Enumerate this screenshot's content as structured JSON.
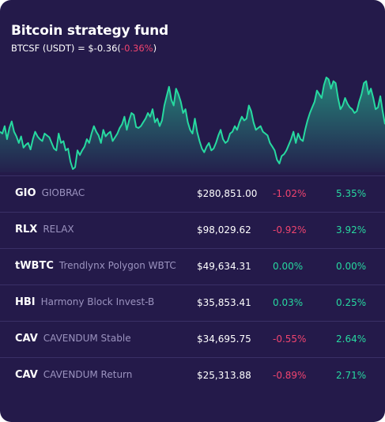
{
  "fund": {
    "title": "Bitcoin strategy fund",
    "pair_label": "BTCSF (USDT) = $-0.36(",
    "change": "-0.36%",
    "close_paren": ")"
  },
  "colors": {
    "background": "#241a4a",
    "line": "#27d9a0",
    "negative": "#f0446f",
    "positive": "#27d9a0",
    "muted": "#9b93bf"
  },
  "chart_data": {
    "type": "area",
    "values": [
      60,
      58,
      66,
      52,
      64,
      71,
      60,
      55,
      48,
      55,
      43,
      46,
      48,
      41,
      52,
      60,
      55,
      52,
      50,
      58,
      56,
      54,
      48,
      42,
      40,
      58,
      48,
      50,
      40,
      42,
      28,
      20,
      22,
      40,
      35,
      40,
      44,
      52,
      48,
      58,
      66,
      60,
      56,
      48,
      62,
      55,
      58,
      60,
      50,
      54,
      58,
      64,
      68,
      76,
      62,
      72,
      80,
      78,
      65,
      64,
      66,
      70,
      74,
      80,
      76,
      84,
      70,
      74,
      66,
      72,
      88,
      98,
      108,
      94,
      88,
      106,
      100,
      92,
      80,
      84,
      70,
      62,
      58,
      74,
      60,
      50,
      42,
      38,
      44,
      48,
      40,
      42,
      48,
      56,
      62,
      52,
      48,
      50,
      58,
      60,
      66,
      62,
      70,
      76,
      72,
      74,
      88,
      82,
      70,
      62,
      64,
      66,
      60,
      58,
      56,
      48,
      44,
      40,
      30,
      26,
      34,
      36,
      40,
      46,
      52,
      60,
      48,
      58,
      52,
      50,
      62,
      72,
      80,
      86,
      92,
      104,
      100,
      96,
      110,
      118,
      116,
      106,
      114,
      112,
      96,
      84,
      88,
      96,
      90,
      86,
      84,
      80,
      82,
      92,
      100,
      112,
      114,
      100,
      106,
      96,
      84,
      86,
      98,
      82,
      68
    ]
  },
  "assets": [
    {
      "symbol": "GIO",
      "name": "GIOBRAC",
      "price": "$280,851.00",
      "change1": "-1.02%",
      "change1_sign": "neg",
      "change2": "5.35%",
      "change2_sign": "pos"
    },
    {
      "symbol": "RLX",
      "name": "RELAX",
      "price": "$98,029.62",
      "change1": "-0.92%",
      "change1_sign": "neg",
      "change2": "3.92%",
      "change2_sign": "pos"
    },
    {
      "symbol": "tWBTC",
      "name": "Trendlynx Polygon WBTC",
      "price": "$49,634.31",
      "change1": "0.00%",
      "change1_sign": "pos",
      "change2": "0.00%",
      "change2_sign": "pos"
    },
    {
      "symbol": "HBI",
      "name": "Harmony Block Invest-B",
      "price": "$35,853.41",
      "change1": "0.03%",
      "change1_sign": "pos",
      "change2": "0.25%",
      "change2_sign": "pos"
    },
    {
      "symbol": "CAV",
      "name": "CAVENDUM Stable",
      "price": "$34,695.75",
      "change1": "-0.55%",
      "change1_sign": "neg",
      "change2": "2.64%",
      "change2_sign": "pos"
    },
    {
      "symbol": "CAV",
      "name": "CAVENDUM Return",
      "price": "$25,313.88",
      "change1": "-0.89%",
      "change1_sign": "neg",
      "change2": "2.71%",
      "change2_sign": "pos"
    }
  ]
}
